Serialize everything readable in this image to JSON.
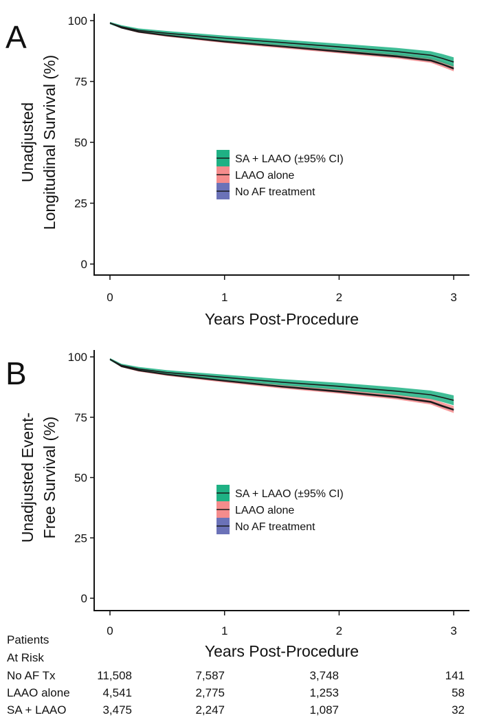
{
  "colors": {
    "sa_laao": "#1fb184",
    "laao": "#f58c8c",
    "noaf": "#6b72b8",
    "line": "#1a1a1a"
  },
  "legend": [
    "SA + LAAO (±95% CI)",
    "LAAO alone",
    "No AF treatment"
  ],
  "at_risk": {
    "title_line1": "Patients",
    "title_line2": "At Risk",
    "rows": [
      {
        "label": "No AF Tx",
        "values": [
          "11,508",
          "7,587",
          "3,748",
          "141"
        ]
      },
      {
        "label": "LAAO alone",
        "values": [
          "4,541",
          "2,775",
          "1,253",
          "58"
        ]
      },
      {
        "label": "SA + LAAO",
        "values": [
          "3,475",
          "2,247",
          "1,087",
          "32"
        ]
      }
    ]
  },
  "chart_data": [
    {
      "type": "line",
      "panel": "A",
      "ylabel_line1": "Unadjusted",
      "ylabel_line2": "Longitudinal Survival (%)",
      "xlabel": "Years Post-Procedure",
      "xticks": [
        "0",
        "1",
        "2",
        "3"
      ],
      "yticks": [
        "0",
        "25",
        "50",
        "75",
        "100"
      ],
      "xlim": [
        0,
        3
      ],
      "ylim": [
        0,
        100
      ],
      "x": [
        0,
        0.1,
        0.25,
        0.5,
        1,
        1.5,
        2,
        2.5,
        2.8,
        2.9,
        3
      ],
      "series": [
        {
          "name": "SA + LAAO",
          "values": [
            99,
            97.5,
            96,
            94.8,
            92.8,
            91,
            89.2,
            87.3,
            85.8,
            84.5,
            83
          ],
          "ci": 1.6
        },
        {
          "name": "LAAO alone",
          "values": [
            99,
            97.2,
            95.5,
            94,
            91.5,
            89.5,
            87.5,
            85.5,
            83.8,
            82.2,
            80.5
          ],
          "ci": 1.1
        },
        {
          "name": "No AF treatment",
          "values": [
            99,
            97,
            95.3,
            93.8,
            91.3,
            89.3,
            87.2,
            85.2,
            83.5,
            82,
            80.2
          ],
          "ci": 0.5
        }
      ]
    },
    {
      "type": "line",
      "panel": "B",
      "ylabel_line1": "Unadjusted Event-",
      "ylabel_line2": "Free Survival (%)",
      "xlabel": "Years Post-Procedure",
      "xticks": [
        "0",
        "1",
        "2",
        "3"
      ],
      "yticks": [
        "0",
        "25",
        "50",
        "75",
        "100"
      ],
      "xlim": [
        0,
        3
      ],
      "ylim": [
        0,
        100
      ],
      "x": [
        0,
        0.1,
        0.25,
        0.5,
        1,
        1.5,
        2,
        2.5,
        2.8,
        2.9,
        3
      ],
      "series": [
        {
          "name": "SA + LAAO",
          "values": [
            99,
            96.5,
            95,
            93.5,
            91.5,
            89.5,
            87.8,
            85.8,
            84.3,
            83.2,
            82
          ],
          "ci": 1.7
        },
        {
          "name": "LAAO alone",
          "values": [
            99,
            96.2,
            94.5,
            92.8,
            90.2,
            87.8,
            85.8,
            83.5,
            81.5,
            79.8,
            78.2
          ],
          "ci": 1.2
        },
        {
          "name": "No AF treatment",
          "values": [
            99,
            96,
            94.3,
            92.6,
            90,
            87.6,
            85.5,
            83.2,
            81.2,
            79.5,
            78
          ],
          "ci": 0.5
        }
      ]
    }
  ]
}
